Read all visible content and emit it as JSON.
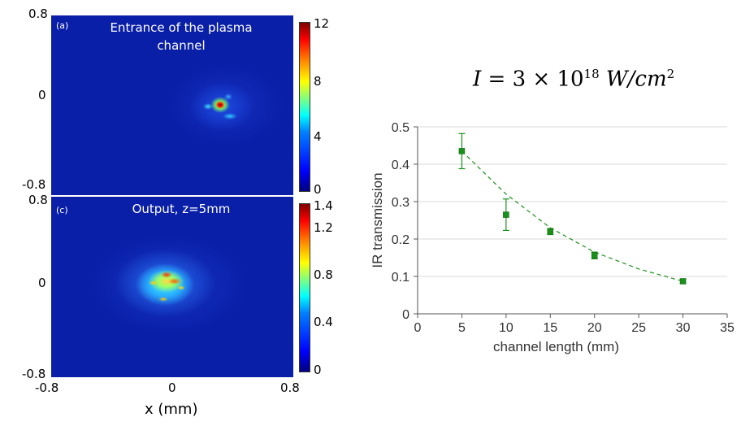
{
  "heatmaps": [
    {
      "tag": "(a)",
      "title_line1": "Entrance of the plasma",
      "title_line2": "channel",
      "y_ticks": [
        "0.8",
        "0",
        "-0.8"
      ],
      "colorbar_ticks": [
        "12",
        "8",
        "4",
        "0"
      ]
    },
    {
      "tag": "(c)",
      "title_line1": "Output, z=5mm",
      "y_ticks": [
        "0.8",
        "0",
        "-0.8"
      ],
      "colorbar_ticks": [
        "1.4",
        "1.2",
        "0.8",
        "0.4",
        "0"
      ]
    }
  ],
  "heatmap_x_ticks": [
    "-0.8",
    "0",
    "0.8"
  ],
  "heatmap_xlabel": "x (mm)",
  "equation": {
    "lhs": "I",
    "mid": "= 3 × 10",
    "exp": "18",
    "unit": "W/cm",
    "unit_exp": "2"
  },
  "colors": {
    "map_background": "#0a1fa8",
    "series": "#1a8f1a"
  },
  "chart_data": {
    "type": "scatter",
    "xlabel": "channel length (mm)",
    "ylabel": "IR transmission",
    "xlim": [
      0,
      35
    ],
    "ylim": [
      0,
      0.5
    ],
    "x_ticks": [
      0,
      5,
      10,
      15,
      20,
      25,
      30,
      35
    ],
    "y_ticks": [
      0,
      0.1,
      0.2,
      0.3,
      0.4,
      0.5
    ],
    "y_tick_labels": [
      "0",
      "0.1",
      "0.2",
      "0.3",
      "0.4",
      "0.5"
    ],
    "grid": "horizontal",
    "points": [
      {
        "x": 5,
        "y": 0.435,
        "err": 0.047
      },
      {
        "x": 10,
        "y": 0.265,
        "err": 0.042
      },
      {
        "x": 15,
        "y": 0.22,
        "err": 0.008
      },
      {
        "x": 20,
        "y": 0.156,
        "err": 0.009
      },
      {
        "x": 30,
        "y": 0.087,
        "err": 0.006
      }
    ],
    "fit_line": "dashed",
    "fit_x": [
      5,
      10,
      15,
      20,
      25,
      30
    ],
    "fit_y": [
      0.435,
      0.32,
      0.23,
      0.165,
      0.12,
      0.087
    ]
  }
}
